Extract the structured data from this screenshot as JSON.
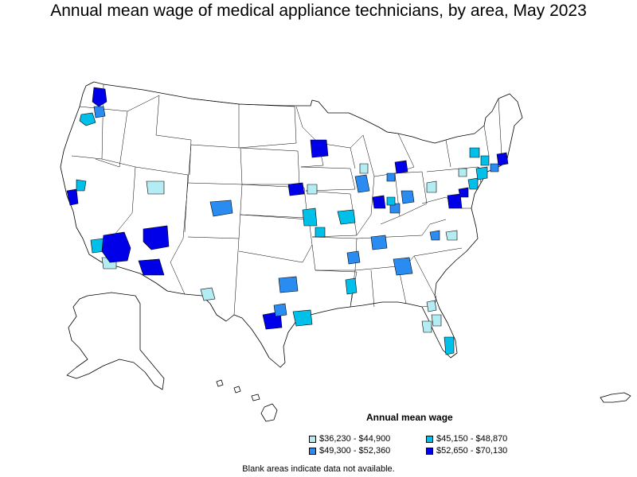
{
  "title": "Annual mean wage of medical appliance technicians, by area, May 2023",
  "legend": {
    "title": "Annual mean wage",
    "items": [
      {
        "label": "$36,230 - $44,900",
        "color": "#b3ecf2"
      },
      {
        "label": "$45,150 - $48,870",
        "color": "#00bfe8"
      },
      {
        "label": "$49,300 - $52,360",
        "color": "#2a8cf0"
      },
      {
        "label": "$52,650 - $70,130",
        "color": "#0000e8"
      }
    ]
  },
  "footnote": "Blank areas indicate data not available.",
  "map": {
    "base_fill": "#ffffff",
    "stroke": "#000000",
    "highlighted_areas": [
      {
        "name": "Seattle area",
        "class": 3
      },
      {
        "name": "Portland area",
        "class": 1
      },
      {
        "name": "Northern Oregon area",
        "class": 2
      },
      {
        "name": "San Francisco Bay area",
        "class": 3
      },
      {
        "name": "Sacramento area",
        "class": 1
      },
      {
        "name": "Las Vegas area",
        "class": 3
      },
      {
        "name": "Phoenix area",
        "class": 3
      },
      {
        "name": "Northern Arizona area",
        "class": 3
      },
      {
        "name": "Tucson area",
        "class": 3
      },
      {
        "name": "Southern California area",
        "class": 1
      },
      {
        "name": "San Diego area",
        "class": 0
      },
      {
        "name": "Salt Lake area",
        "class": 0
      },
      {
        "name": "Denver area",
        "class": 2
      },
      {
        "name": "El Paso area",
        "class": 0
      },
      {
        "name": "Minneapolis area",
        "class": 3
      },
      {
        "name": "Omaha area",
        "class": 3
      },
      {
        "name": "Des Moines area",
        "class": 0
      },
      {
        "name": "Kansas City area",
        "class": 1
      },
      {
        "name": "Tulsa area",
        "class": 1
      },
      {
        "name": "St. Louis area",
        "class": 1
      },
      {
        "name": "Chicago area",
        "class": 2
      },
      {
        "name": "Milwaukee area",
        "class": 0
      },
      {
        "name": "Detroit area",
        "class": 3
      },
      {
        "name": "Toledo area",
        "class": 2
      },
      {
        "name": "Indianapolis area",
        "class": 3
      },
      {
        "name": "Columbus area",
        "class": 2
      },
      {
        "name": "Cincinnati area",
        "class": 2
      },
      {
        "name": "Louisville area",
        "class": 1
      },
      {
        "name": "Nashville area",
        "class": 2
      },
      {
        "name": "Memphis area",
        "class": 2
      },
      {
        "name": "Atlanta area",
        "class": 2
      },
      {
        "name": "Birmingham area",
        "class": 1
      },
      {
        "name": "Dallas area",
        "class": 2
      },
      {
        "name": "Austin area",
        "class": 3
      },
      {
        "name": "San Antonio area",
        "class": 2
      },
      {
        "name": "Houston area",
        "class": 1
      },
      {
        "name": "Orlando area",
        "class": 0
      },
      {
        "name": "Tampa area",
        "class": 0
      },
      {
        "name": "Miami area",
        "class": 1
      },
      {
        "name": "Jacksonville area",
        "class": 0
      },
      {
        "name": "Charlotte area",
        "class": 2
      },
      {
        "name": "Raleigh area",
        "class": 0
      },
      {
        "name": "Pittsburgh area",
        "class": 0
      },
      {
        "name": "Washington area",
        "class": 3
      },
      {
        "name": "Baltimore area",
        "class": 3
      },
      {
        "name": "Philadelphia area",
        "class": 1
      },
      {
        "name": "New York area",
        "class": 1
      },
      {
        "name": "Hartford area",
        "class": 2
      },
      {
        "name": "Boston area",
        "class": 3
      },
      {
        "name": "Albany area",
        "class": 1
      },
      {
        "name": "Rochester area",
        "class": 1
      },
      {
        "name": "Scranton area",
        "class": 0
      }
    ]
  }
}
